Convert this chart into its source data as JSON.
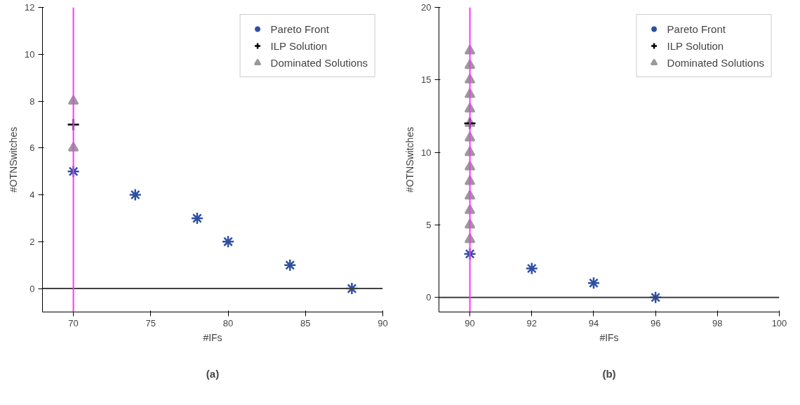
{
  "chart_data": [
    {
      "type": "scatter",
      "xlabel": "#IFs",
      "ylabel": "#OTNSwitches",
      "xlim": [
        68,
        90
      ],
      "ylim": [
        -1,
        12
      ],
      "xticks": [
        70,
        75,
        80,
        85,
        90
      ],
      "yticks": [
        0,
        2,
        4,
        6,
        8,
        10,
        12
      ],
      "grid": false,
      "legend": "top right",
      "annotations": [
        "(a)"
      ],
      "series": [
        {
          "name": "Pareto Front",
          "color": "#2e4fa3",
          "x": [
            70,
            74,
            78,
            80,
            84,
            88
          ],
          "values": [
            5,
            4,
            3,
            2,
            1,
            0
          ]
        },
        {
          "name": "ILP Solution",
          "color": "#000000",
          "marker": "cross",
          "x": [
            70
          ],
          "values": [
            7
          ]
        },
        {
          "name": "Dominated Solutions",
          "color": "#9a9a9a",
          "marker": "triangle",
          "x": [
            70,
            70
          ],
          "values": [
            6,
            8
          ]
        }
      ],
      "ref_lines": [
        {
          "axis": "y",
          "value": 0,
          "color": "#404040"
        },
        {
          "axis": "x",
          "value": 70,
          "color": "#ff33ff"
        }
      ]
    },
    {
      "type": "scatter",
      "xlabel": "#IFs",
      "ylabel": "#OTNSwitches",
      "xlim": [
        89,
        100
      ],
      "ylim": [
        -1,
        20
      ],
      "xticks": [
        90,
        92,
        94,
        96,
        98,
        100
      ],
      "yticks": [
        0,
        5,
        10,
        15,
        20
      ],
      "grid": false,
      "legend": "top right",
      "annotations": [
        "(b)"
      ],
      "series": [
        {
          "name": "Pareto Front",
          "color": "#2e4fa3",
          "x": [
            90,
            92,
            94,
            96
          ],
          "values": [
            3,
            2,
            1,
            0
          ]
        },
        {
          "name": "ILP Solution",
          "color": "#000000",
          "marker": "cross",
          "x": [
            90
          ],
          "values": [
            12
          ]
        },
        {
          "name": "Dominated Solutions",
          "color": "#9a9a9a",
          "marker": "triangle",
          "x": [
            90,
            90,
            90,
            90,
            90,
            90,
            90,
            90,
            90,
            90,
            90,
            90,
            90,
            90
          ],
          "values": [
            4,
            5,
            6,
            7,
            8,
            9,
            10,
            11,
            12,
            13,
            14,
            15,
            16,
            17
          ]
        }
      ],
      "ref_lines": [
        {
          "axis": "y",
          "value": 0,
          "color": "#404040"
        },
        {
          "axis": "x",
          "value": 90,
          "color": "#ff33ff"
        }
      ]
    }
  ]
}
